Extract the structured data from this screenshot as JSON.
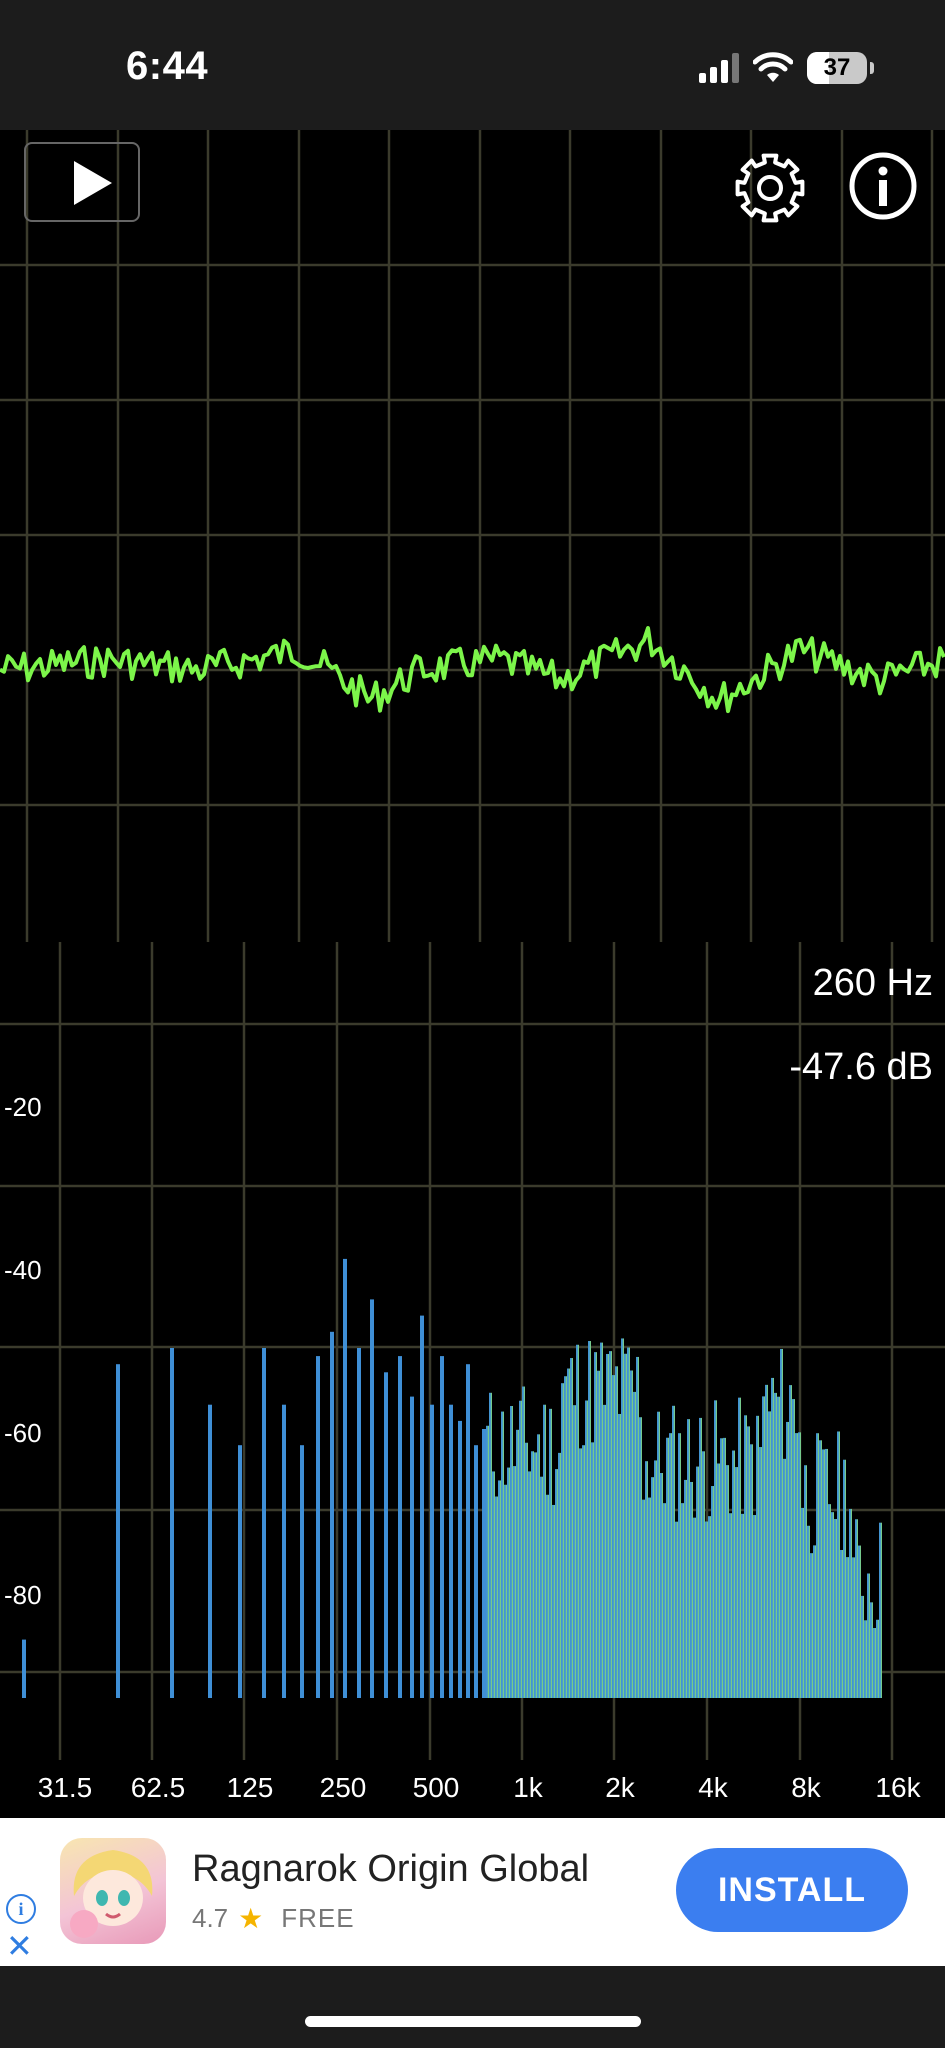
{
  "status_bar": {
    "time": "6:44",
    "battery": "37",
    "battery_level": 0.37
  },
  "toolbar": {
    "play_icon": "play-icon",
    "settings_icon": "gear-icon",
    "info_icon": "info-icon"
  },
  "readout": {
    "frequency": "260 Hz",
    "level": "-47.6 dB"
  },
  "spectrum": {
    "db_labels": [
      "-20",
      "-40",
      "-60",
      "-80"
    ],
    "freq_labels": [
      "31.5",
      "62.5",
      "125",
      "250",
      "500",
      "1k",
      "2k",
      "4k",
      "8k",
      "16k"
    ]
  },
  "ad": {
    "title": "Ragnarok Origin Global",
    "rating": "4.7",
    "price": "FREE",
    "install_label": "INSTALL"
  },
  "colors": {
    "waveform": "#7cf54a",
    "grid": "#3b3b2c",
    "bar_low": "#3f8fd6",
    "bar_high": "#8ee36a",
    "install": "#3b7ef0"
  }
}
